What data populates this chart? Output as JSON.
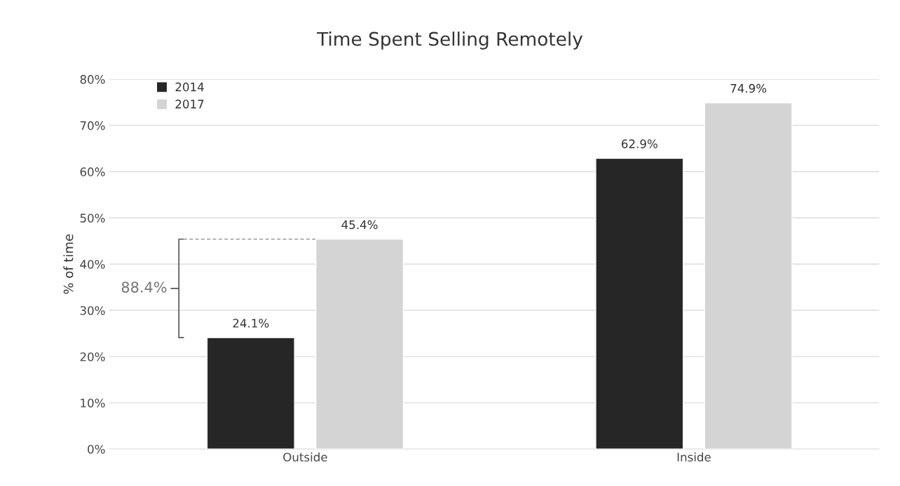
{
  "chart_data": {
    "type": "bar",
    "title": "Time Spent Selling Remotely",
    "ylabel": "% of time",
    "categories": [
      "Outside",
      "Inside"
    ],
    "series": [
      {
        "name": "2014",
        "color": "#262626",
        "values": [
          24.1,
          62.9
        ]
      },
      {
        "name": "2017",
        "color": "#d4d4d4",
        "values": [
          45.4,
          74.9
        ]
      }
    ],
    "value_labels": [
      [
        "24.1%",
        "62.9%"
      ],
      [
        "45.4%",
        "74.9%"
      ]
    ],
    "ylim": [
      0,
      80
    ],
    "yticks": [
      {
        "value": 0,
        "label": "0%"
      },
      {
        "value": 10,
        "label": "10%"
      },
      {
        "value": 20,
        "label": "20%"
      },
      {
        "value": 30,
        "label": "30%"
      },
      {
        "value": 40,
        "label": "40%"
      },
      {
        "value": 50,
        "label": "50%"
      },
      {
        "value": 60,
        "label": "60%"
      },
      {
        "value": 70,
        "label": "70%"
      },
      {
        "value": 80,
        "label": "80%"
      }
    ],
    "annotations": [
      "88.4%"
    ],
    "grid": "y",
    "legend": "top left"
  }
}
